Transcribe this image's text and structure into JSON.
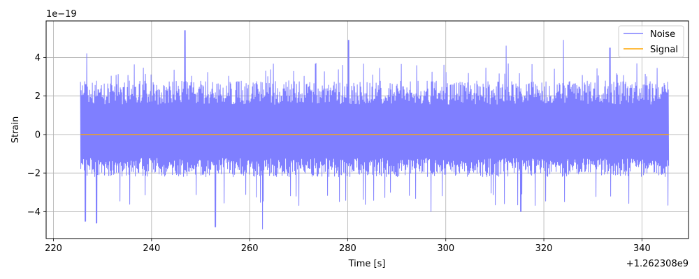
{
  "chart_data": {
    "type": "line",
    "xlabel": "Time [s]",
    "ylabel": "Strain",
    "x_offset_label": "+1.262308e9",
    "y_scale_label": "1e−19",
    "xlim": [
      218.5,
      349.5
    ],
    "ylim": [
      -5.4,
      5.9
    ],
    "x_ticks": [
      220,
      240,
      260,
      280,
      300,
      320,
      340
    ],
    "x_tick_labels": [
      "220",
      "240",
      "260",
      "280",
      "300",
      "320",
      "340"
    ],
    "y_ticks": [
      -4,
      -2,
      0,
      2,
      4
    ],
    "y_tick_labels": [
      "−4",
      "−2",
      "0",
      "2",
      "4"
    ],
    "grid": true,
    "legend_position": "top-right",
    "series": [
      {
        "name": "Noise",
        "color": "#7f7fff",
        "x_start": 225.5,
        "x_end": 345.5,
        "typical_band": [
          -2.2,
          2.8
        ],
        "peaks": [
          {
            "x": 226.8,
            "y": 4.2
          },
          {
            "x": 246.8,
            "y": 5.4
          },
          {
            "x": 280.2,
            "y": 4.9
          },
          {
            "x": 312.3,
            "y": 4.6
          },
          {
            "x": 324.0,
            "y": 4.9
          },
          {
            "x": 333.5,
            "y": 4.5
          }
        ],
        "troughs": [
          {
            "x": 226.5,
            "y": -4.5
          },
          {
            "x": 228.8,
            "y": -4.6
          },
          {
            "x": 253.0,
            "y": -4.8
          },
          {
            "x": 262.7,
            "y": -4.9
          },
          {
            "x": 297.0,
            "y": -4.0
          },
          {
            "x": 315.3,
            "y": -4.0
          }
        ]
      },
      {
        "name": "Signal",
        "color": "#ffa500",
        "x": [
          225.5,
          345.5
        ],
        "y": [
          0,
          0
        ]
      }
    ]
  }
}
